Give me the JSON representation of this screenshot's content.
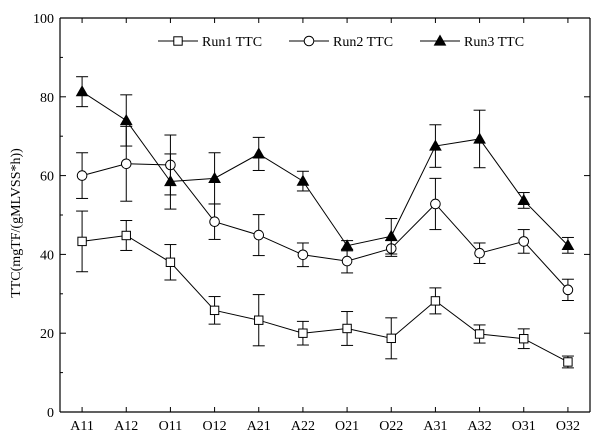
{
  "chart_data": {
    "type": "line",
    "title": "",
    "xlabel": "",
    "ylabel": "TTC(mgTF/(gMLVSS*h))",
    "ylim": [
      0,
      100
    ],
    "yticks": [
      0,
      20,
      40,
      60,
      80,
      100
    ],
    "categories": [
      "A11",
      "A12",
      "O11",
      "O12",
      "A21",
      "A22",
      "O21",
      "O22",
      "A31",
      "A32",
      "O31",
      "O32"
    ],
    "grid": false,
    "legend_position": "top-center",
    "series": [
      {
        "name": "Run1 TTC",
        "marker": "square",
        "values": [
          43.3,
          44.8,
          38.0,
          25.8,
          23.3,
          20.0,
          21.2,
          18.7,
          28.2,
          19.8,
          18.6,
          12.7
        ],
        "errors": [
          7.7,
          3.8,
          4.5,
          3.5,
          6.5,
          3.0,
          4.3,
          5.2,
          3.3,
          2.3,
          2.5,
          1.5
        ]
      },
      {
        "name": "Run2 TTC",
        "marker": "circle",
        "values": [
          60.0,
          63.0,
          62.7,
          48.3,
          44.9,
          39.9,
          38.3,
          41.5,
          52.8,
          40.3,
          43.3,
          31.0
        ],
        "errors": [
          5.8,
          9.5,
          7.6,
          4.5,
          5.2,
          3.0,
          3.0,
          2.0,
          6.5,
          2.6,
          3.0,
          2.7
        ]
      },
      {
        "name": "Run3 TTC",
        "marker": "triangle",
        "values": [
          81.3,
          74.0,
          58.5,
          59.3,
          65.5,
          58.6,
          42.2,
          44.6,
          67.5,
          69.3,
          53.7,
          42.3
        ],
        "errors": [
          3.8,
          6.5,
          7.0,
          6.5,
          4.2,
          2.5,
          1.3,
          4.5,
          5.4,
          7.3,
          2.0,
          2.0
        ]
      }
    ]
  }
}
